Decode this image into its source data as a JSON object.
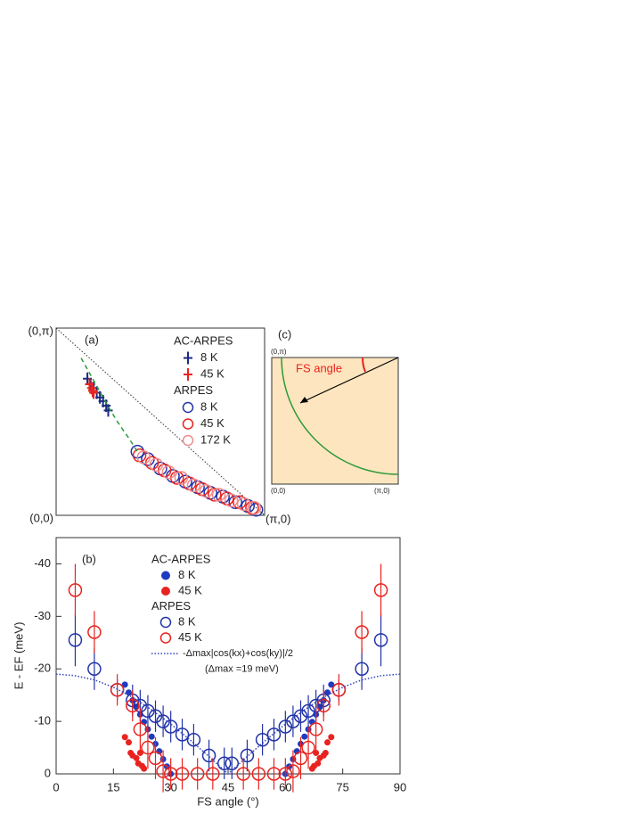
{
  "chart_data": [
    {
      "type": "scatter",
      "panel_label": "(a)",
      "corner_labels": [
        "(0,π)",
        "(0,0)",
        "(π,0)"
      ],
      "xlim": [
        0,
        1
      ],
      "ylim": [
        0,
        1
      ],
      "legend_headings": [
        "AC-ARPES",
        "ARPES"
      ],
      "series": [
        {
          "name": "8 K",
          "color": "#1b2a80",
          "marker": "plus",
          "x": [
            0.15,
            0.165,
            0.18,
            0.195,
            0.21,
            0.225,
            0.24,
            0.25
          ],
          "values": [
            0.73,
            0.7,
            0.68,
            0.655,
            0.63,
            0.61,
            0.585,
            0.56
          ]
        },
        {
          "name": "45 K",
          "color": "#e8231f",
          "marker": "plus",
          "x": [
            0.16,
            0.17,
            0.175,
            0.18
          ],
          "values": [
            0.7,
            0.68,
            0.665,
            0.655
          ]
        },
        {
          "name": "8 K",
          "color": "#2233a8",
          "marker": "circle-open",
          "x": [
            0.39,
            0.44,
            0.5,
            0.56,
            0.62,
            0.68,
            0.74,
            0.8,
            0.86,
            0.92,
            0.96
          ],
          "values": [
            0.34,
            0.3,
            0.25,
            0.21,
            0.18,
            0.15,
            0.12,
            0.1,
            0.07,
            0.05,
            0.03
          ]
        },
        {
          "name": "45 K",
          "color": "#e8231f",
          "marker": "circle-open",
          "x": [
            0.4,
            0.46,
            0.52,
            0.58,
            0.64,
            0.7,
            0.76,
            0.82,
            0.88,
            0.94
          ],
          "values": [
            0.32,
            0.28,
            0.24,
            0.2,
            0.17,
            0.14,
            0.11,
            0.09,
            0.07,
            0.04
          ]
        },
        {
          "name": "172 K",
          "color": "#f28a8a",
          "marker": "circle-open",
          "x": [
            0.42,
            0.48,
            0.54,
            0.6,
            0.66,
            0.72,
            0.78,
            0.84,
            0.9,
            0.95
          ],
          "values": [
            0.31,
            0.27,
            0.23,
            0.2,
            0.16,
            0.13,
            0.11,
            0.08,
            0.06,
            0.04
          ]
        },
        {
          "color": "#2a9a3a",
          "marker": "dashed-line",
          "x": [
            0.12,
            0.16,
            0.2,
            0.25,
            0.3,
            0.35,
            0.39
          ],
          "values": [
            0.84,
            0.76,
            0.68,
            0.58,
            0.49,
            0.41,
            0.34
          ]
        }
      ]
    },
    {
      "type": "scatter",
      "panel_label": "(b)",
      "x_label": "FS angle (°)",
      "y_label": "E - EF (meV)",
      "xlim": [
        0,
        90
      ],
      "ylim": [
        0,
        -45
      ],
      "xticks": [
        0,
        15,
        30,
        45,
        60,
        75,
        90
      ],
      "yticks": [
        -40,
        -30,
        -20,
        -10,
        0
      ],
      "legend_headings": [
        "AC-ARPES",
        "ARPES"
      ],
      "note": "(Δmax =19 meV)",
      "series": [
        {
          "name": "8 K",
          "color": "#1f3cc0",
          "marker": "circle-filled",
          "x": [
            18,
            19,
            20,
            21,
            22,
            23,
            24,
            25,
            26,
            27,
            28,
            29,
            30,
            60,
            61,
            62,
            63,
            64,
            65,
            66,
            67,
            68,
            69,
            70,
            71,
            72
          ],
          "values": [
            -17,
            -15.5,
            -14,
            -12.8,
            -11.3,
            -9.9,
            -8.5,
            -7.1,
            -5.7,
            -4.3,
            -2.8,
            -1.4,
            0,
            0,
            -1.4,
            -2.8,
            -4.3,
            -5.7,
            -7.1,
            -8.5,
            -9.9,
            -11.3,
            -12.8,
            -14,
            -15.5,
            -17
          ]
        },
        {
          "name": "45 K",
          "color": "#e8231f",
          "marker": "circle-filled",
          "x": [
            18,
            19,
            19.5,
            20,
            21,
            21.5,
            22,
            22.5,
            23,
            67,
            67.5,
            68,
            68.5,
            69,
            70,
            70.5,
            71,
            72
          ],
          "values": [
            -7,
            -6,
            -4,
            -3.5,
            -3,
            -2,
            -4,
            -1.5,
            -1,
            -1,
            -1.5,
            -4,
            -2,
            -3,
            -3.5,
            -4,
            -6,
            -7
          ]
        },
        {
          "name": "8 K",
          "color": "#2233a8",
          "marker": "circle-open",
          "x": [
            5,
            10,
            16,
            20,
            22,
            24,
            26,
            28,
            30,
            33,
            36,
            40,
            44,
            46,
            50,
            54,
            57,
            60,
            62,
            64,
            66,
            68,
            70,
            74,
            80,
            85
          ],
          "values": [
            -25.5,
            -20,
            -16,
            -14,
            -13,
            -12,
            -11,
            -10,
            -9,
            -7.5,
            -6.5,
            -3.5,
            -2,
            -2,
            -3.5,
            -6.5,
            -7.5,
            -9,
            -10,
            -11,
            -12,
            -13,
            -14,
            -16,
            -20,
            -25.5
          ],
          "errors": [
            5,
            4,
            2,
            3,
            3,
            3,
            3,
            3,
            3,
            3,
            3,
            3,
            3,
            3,
            3,
            3,
            3,
            3,
            3,
            3,
            3,
            3,
            3,
            2,
            4,
            5
          ]
        },
        {
          "name": "45 K",
          "color": "#e8231f",
          "marker": "circle-open",
          "x": [
            5,
            10,
            16,
            20,
            22,
            24,
            26,
            28,
            30,
            33,
            37,
            41,
            49,
            53,
            57,
            60,
            62,
            64,
            66,
            68,
            70,
            74,
            80,
            85
          ],
          "values": [
            -35,
            -27,
            -16,
            -13,
            -8.5,
            -5,
            -3,
            -0.5,
            0,
            0,
            0,
            0,
            0,
            0,
            0,
            0,
            -0.5,
            -3,
            -5,
            -8.5,
            -13,
            -16,
            -27,
            -35
          ],
          "errors": [
            5,
            4,
            3,
            3,
            4,
            4,
            4,
            4,
            3,
            3,
            3,
            3,
            3,
            3,
            3,
            3,
            4,
            4,
            4,
            4,
            3,
            3,
            4,
            5
          ]
        },
        {
          "name": "-Δmax|cos(kx)+cos(ky)|/2",
          "color": "#3344bb",
          "marker": "dotted-line",
          "x": [
            0,
            5,
            10,
            15,
            20,
            25,
            30,
            35,
            40,
            45,
            50,
            55,
            60,
            65,
            70,
            75,
            80,
            85,
            90
          ],
          "values": [
            -19,
            -18.7,
            -17.9,
            -16.5,
            -14.6,
            -12.2,
            -9.5,
            -6.5,
            -3.3,
            0,
            -3.3,
            -6.5,
            -9.5,
            -12.2,
            -14.6,
            -16.5,
            -17.9,
            -18.7,
            -19
          ]
        }
      ]
    }
  ],
  "diagram": {
    "panel_label": "(c)",
    "corner_labels": [
      "(0,π)",
      "(0,0)",
      "(π,0)"
    ],
    "annotation": "FS angle"
  }
}
